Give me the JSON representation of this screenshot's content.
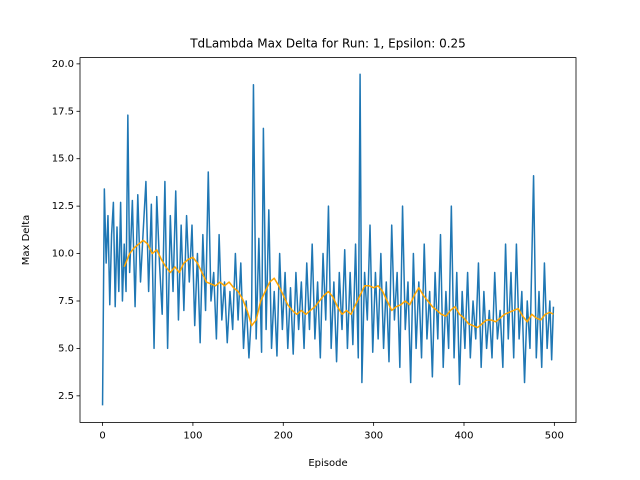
{
  "chart_data": {
    "type": "line",
    "title": "TdLambda Max Delta for Run: 1, Epsilon: 0.25",
    "x_label": "Episode",
    "y_label": "Max Delta",
    "xlim": [
      -24.95,
      523.95
    ],
    "ylim": [
      1.1,
      20.33
    ],
    "xticks": [
      0,
      100,
      200,
      300,
      400,
      500
    ],
    "yticks": [
      2.5,
      {
        "value": 5,
        "label": "5.0"
      },
      7.5,
      {
        "value": 10,
        "label": "10.0"
      },
      12.5,
      {
        "value": 15,
        "label": "15.0"
      },
      17.5,
      {
        "value": 20,
        "label": "20.0"
      }
    ],
    "series": [
      {
        "color": "#1f77b4",
        "x": [
          0,
          2,
          4,
          6,
          8,
          10,
          12,
          14,
          16,
          18,
          20,
          22,
          24,
          26,
          28,
          30,
          33,
          36,
          39,
          42,
          45,
          48,
          51,
          54,
          57,
          60,
          63,
          66,
          69,
          72,
          75,
          78,
          81,
          84,
          87,
          90,
          93,
          96,
          99,
          102,
          105,
          108,
          111,
          114,
          117,
          120,
          123,
          126,
          129,
          132,
          135,
          138,
          141,
          144,
          147,
          150,
          153,
          156,
          159,
          162,
          165,
          167,
          170,
          173,
          176,
          178,
          181,
          184,
          187,
          190,
          193,
          196,
          199,
          202,
          205,
          208,
          211,
          214,
          217,
          220,
          223,
          226,
          229,
          232,
          235,
          238,
          241,
          244,
          247,
          250,
          253,
          256,
          259,
          262,
          265,
          268,
          271,
          274,
          277,
          280,
          283,
          285,
          287,
          290,
          293,
          296,
          299,
          302,
          305,
          308,
          311,
          314,
          317,
          320,
          323,
          326,
          329,
          332,
          335,
          338,
          341,
          344,
          347,
          350,
          353,
          356,
          359,
          362,
          365,
          368,
          371,
          374,
          377,
          380,
          383,
          386,
          389,
          392,
          395,
          398,
          401,
          404,
          407,
          410,
          413,
          416,
          419,
          422,
          425,
          428,
          431,
          434,
          437,
          440,
          443,
          446,
          449,
          452,
          455,
          458,
          461,
          464,
          467,
          470,
          473,
          477,
          480,
          483,
          486,
          489,
          492,
          495,
          497,
          499
        ],
        "values": [
          2.0,
          13.4,
          9.5,
          12.0,
          7.3,
          11.0,
          12.7,
          7.2,
          11.4,
          8.0,
          12.7,
          7.5,
          10.5,
          8.0,
          17.3,
          9.0,
          12.8,
          7.2,
          13.1,
          8.5,
          11.2,
          13.8,
          8.0,
          12.6,
          5.0,
          13.0,
          9.5,
          6.8,
          13.8,
          5.0,
          12.0,
          8.0,
          13.3,
          6.5,
          11.5,
          7.0,
          12.0,
          8.5,
          11.5,
          6.2,
          10.0,
          5.3,
          11.0,
          7.0,
          14.3,
          7.5,
          9.0,
          5.5,
          11.0,
          6.5,
          8.5,
          5.3,
          8.0,
          6.0,
          10.0,
          6.5,
          9.5,
          5.0,
          7.5,
          4.5,
          7.0,
          18.9,
          5.5,
          10.8,
          4.8,
          16.6,
          6.0,
          12.3,
          5.0,
          8.0,
          4.6,
          10.0,
          6.0,
          9.0,
          5.0,
          8.2,
          4.7,
          9.0,
          6.0,
          8.5,
          5.0,
          9.5,
          6.0,
          10.5,
          5.5,
          8.5,
          4.5,
          10.0,
          6.5,
          12.5,
          5.0,
          8.5,
          4.3,
          9.0,
          6.0,
          10.2,
          5.0,
          9.0,
          5.2,
          10.5,
          4.5,
          19.45,
          3.2,
          9.0,
          6.5,
          11.5,
          4.8,
          9.0,
          5.5,
          10.0,
          5.0,
          8.5,
          4.3,
          11.5,
          6.5,
          9.0,
          4.0,
          12.5,
          6.0,
          8.5,
          3.2,
          10.0,
          5.0,
          8.5,
          4.5,
          10.5,
          5.5,
          8.0,
          3.5,
          9.0,
          5.5,
          11.0,
          4.0,
          8.0,
          5.0,
          12.5,
          4.5,
          9.0,
          3.1,
          8.0,
          5.0,
          9.0,
          4.5,
          7.5,
          5.5,
          9.5,
          4.0,
          8.0,
          5.0,
          7.0,
          4.5,
          9.0,
          5.5,
          7.0,
          4.0,
          10.5,
          5.5,
          9.0,
          4.5,
          10.5,
          5.5,
          8.0,
          3.2,
          7.5,
          5.0,
          14.1,
          4.5,
          8.0,
          4.0,
          9.5,
          5.0,
          7.5,
          4.4,
          7.2
        ]
      },
      {
        "color": "#ffa500",
        "x": [
          24,
          30,
          35,
          40,
          45,
          50,
          55,
          60,
          65,
          70,
          75,
          80,
          85,
          90,
          95,
          100,
          105,
          110,
          115,
          120,
          125,
          130,
          135,
          140,
          145,
          150,
          155,
          160,
          165,
          170,
          175,
          180,
          185,
          190,
          195,
          200,
          205,
          210,
          215,
          220,
          225,
          230,
          235,
          240,
          245,
          250,
          255,
          260,
          265,
          270,
          275,
          280,
          285,
          290,
          295,
          300,
          305,
          310,
          315,
          320,
          325,
          330,
          335,
          340,
          345,
          350,
          355,
          360,
          365,
          370,
          375,
          380,
          385,
          390,
          395,
          400,
          405,
          410,
          415,
          420,
          425,
          430,
          435,
          440,
          445,
          450,
          455,
          460,
          465,
          470,
          475,
          480,
          485,
          490,
          495,
          499
        ],
        "values": [
          9.3,
          10.0,
          10.3,
          10.5,
          10.7,
          10.5,
          10.0,
          10.2,
          9.7,
          9.3,
          9.0,
          9.3,
          9.0,
          9.5,
          9.7,
          9.8,
          9.5,
          9.0,
          8.5,
          8.4,
          8.3,
          8.5,
          8.3,
          8.5,
          8.2,
          8.0,
          7.6,
          7.0,
          6.2,
          6.5,
          7.5,
          8.0,
          8.5,
          8.7,
          8.3,
          7.8,
          7.3,
          7.0,
          6.8,
          7.0,
          6.8,
          7.0,
          7.2,
          7.5,
          7.8,
          8.0,
          7.7,
          7.2,
          6.8,
          7.0,
          6.8,
          7.3,
          7.8,
          8.3,
          8.3,
          8.2,
          8.3,
          8.0,
          7.5,
          7.0,
          7.2,
          7.3,
          7.5,
          7.3,
          7.8,
          8.2,
          7.8,
          7.5,
          7.2,
          7.0,
          6.8,
          6.7,
          7.0,
          7.2,
          6.8,
          6.6,
          6.3,
          6.2,
          6.1,
          6.3,
          6.5,
          6.5,
          6.4,
          6.6,
          6.8,
          6.9,
          7.0,
          7.1,
          6.7,
          6.4,
          6.8,
          6.6,
          6.5,
          6.8,
          6.9,
          6.8
        ]
      }
    ]
  }
}
